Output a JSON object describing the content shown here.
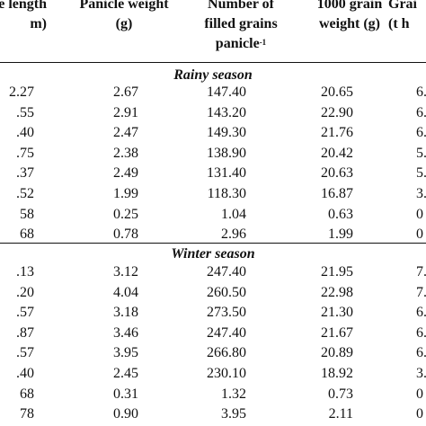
{
  "header": {
    "col0_line1": "e length",
    "col0_line2": "m)",
    "col1_line1": "Panicle weight",
    "col1_line2": "(g)",
    "col2_line1": "Number of",
    "col2_line2": "filled grains",
    "col2_line3": "panicle",
    "col2_sup": "-1",
    "col3_line1": "1000 grain",
    "col3_line2": "weight (g)",
    "col4_line1": "Grai",
    "col4_line2": "(t h"
  },
  "sections": [
    {
      "title": "Rainy season",
      "rows": [
        [
          "2.27",
          "2.67",
          "147.40",
          "20.65",
          "6."
        ],
        [
          ".55",
          "2.91",
          "143.20",
          "22.90",
          "6."
        ],
        [
          ".40",
          "2.47",
          "149.30",
          "21.76",
          "6."
        ],
        [
          ".75",
          "2.38",
          "138.90",
          "20.42",
          "5."
        ],
        [
          ".37",
          "2.49",
          "131.40",
          "20.63",
          "5."
        ],
        [
          ".52",
          "1.99",
          "118.30",
          "16.87",
          "3."
        ],
        [
          "58",
          "0.25",
          "1.04",
          "0.63",
          "0"
        ],
        [
          "68",
          "0.78",
          "2.96",
          "1.99",
          "0"
        ]
      ]
    },
    {
      "title": "Winter season",
      "rows": [
        [
          ".13",
          "3.12",
          "247.40",
          "21.95",
          "7."
        ],
        [
          ".20",
          "4.04",
          "260.50",
          "22.98",
          "7."
        ],
        [
          ".57",
          "3.18",
          "273.50",
          "21.30",
          "6."
        ],
        [
          ".87",
          "3.46",
          "247.40",
          "21.67",
          "6."
        ],
        [
          ".57",
          "3.95",
          "266.80",
          "20.89",
          "6."
        ],
        [
          ".40",
          "2.45",
          "230.10",
          "18.92",
          "3."
        ],
        [
          "68",
          "0.31",
          "1.32",
          "0.73",
          "0"
        ],
        [
          "78",
          "0.90",
          "3.95",
          "2.11",
          "0"
        ]
      ]
    }
  ]
}
